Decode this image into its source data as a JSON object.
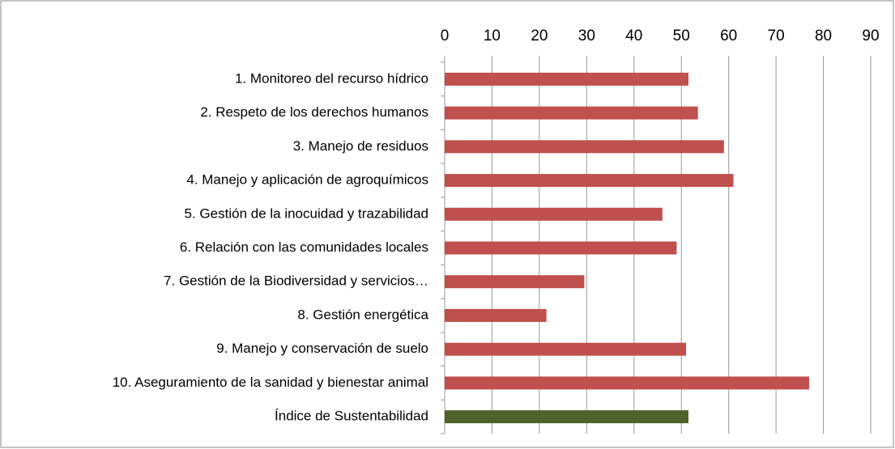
{
  "chart_data": {
    "type": "bar",
    "orientation": "horizontal",
    "categories": [
      "1. Monitoreo del recurso hídrico",
      "2. Respeto de los derechos humanos",
      "3. Manejo de residuos ",
      "4. Manejo y aplicación de agroquímicos",
      "5. Gestión de la inocuidad y trazabilidad",
      "6. Relación con las comunidades locales",
      "7. Gestión de la Biodiversidad y servicios…",
      "8. Gestión energética",
      "9. Manejo y conservación de suelo",
      "10. Aseguramiento de la sanidad y bienestar animal",
      "Índice de Sustentabilidad"
    ],
    "values": [
      51.5,
      53.5,
      59,
      61,
      46,
      49,
      29.5,
      21.5,
      51,
      77,
      51.5
    ],
    "colors": [
      "#c0504d",
      "#c0504d",
      "#c0504d",
      "#c0504d",
      "#c0504d",
      "#c0504d",
      "#c0504d",
      "#c0504d",
      "#c0504d",
      "#c0504d",
      "#4f6228"
    ],
    "xlim": [
      0,
      90
    ],
    "xticks": [
      0,
      10,
      20,
      30,
      40,
      50,
      60,
      70,
      80,
      90
    ],
    "grid": true
  }
}
